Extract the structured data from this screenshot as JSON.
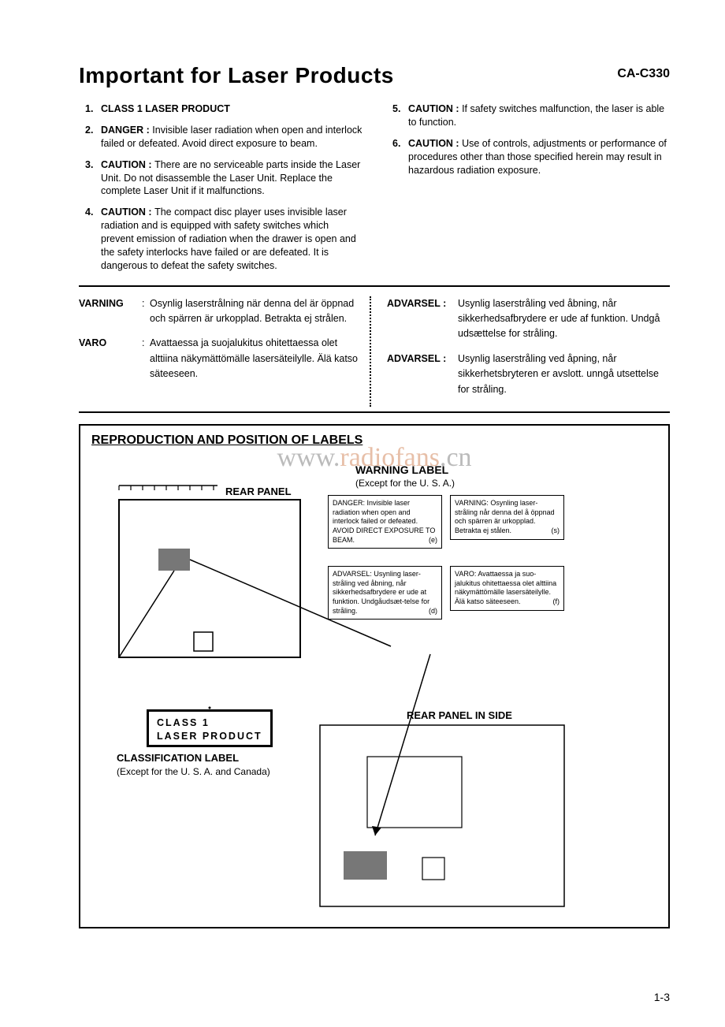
{
  "model": "CA-C330",
  "title": "Important for Laser Products",
  "list_left": [
    {
      "lead": "CLASS 1 LASER PRODUCT",
      "body": ""
    },
    {
      "lead": "DANGER :",
      "body": "Invisible laser radiation when open and interlock failed or defeated. Avoid direct exposure to beam."
    },
    {
      "lead": "CAUTION :",
      "body": "There are no serviceable parts inside the Laser Unit. Do not disassemble the Laser Unit. Replace the complete Laser Unit if it malfunctions."
    },
    {
      "lead": "CAUTION :",
      "body": "The compact disc player uses invisible laser radiation and is equipped with safety switches which prevent emission of radiation when the drawer is open and the safety interlocks have failed or are defeated. It is dangerous to defeat the safety switches."
    }
  ],
  "list_right": [
    {
      "lead": "CAUTION :",
      "body": "If safety switches malfunction, the laser is able to function."
    },
    {
      "lead": "CAUTION :",
      "body": "Use of controls, adjustments or performance of procedures other than those specified herein may result in hazardous radiation exposure."
    }
  ],
  "list_right_start": 5,
  "warnings_left": [
    {
      "label": "VARNING",
      "text": "Osynlig laserstrålning när denna del är öppnad och spärren är urkopplad. Betrakta ej strålen."
    },
    {
      "label": "VARO",
      "text": "Avattaessa ja suojalukitus ohitettaessa olet alttiina näkymättömälle lasersäteilylle. Älä katso säteeseen."
    }
  ],
  "warnings_right": [
    {
      "label": "ADVARSEL :",
      "text": "Usynlig laserstråling ved åbning, når sikkerhedsafbrydere er ude af funktion. Undgå udsættelse for stråling."
    },
    {
      "label": "ADVARSEL :",
      "text": "Usynlig laserstråling ved åpning, når sikkerhetsbryteren er avslott. unngå utsettelse for stråling."
    }
  ],
  "repro_title": "REPRODUCTION AND POSITION OF LABELS",
  "watermark_pre": "www.",
  "watermark_red": "radiofans",
  "watermark_post": ".cn",
  "rear_panel": "REAR PANEL",
  "warning_label": "WARNING LABEL",
  "warning_label_sub": "(Except for the U. S. A.)",
  "wbox": {
    "en": {
      "text": "DANGER:   Invisible laser radiation when open and interlock failed or defeated. AVOID DIRECT EXPOSURE TO BEAM.",
      "code": "(e)"
    },
    "sv": {
      "text": "VARNING:  Osynling laser-stråling når denna del å öppnad och spärren är urkopplad.  Betrakta ej stålen.",
      "code": "(s)"
    },
    "da": {
      "text": "ADVARSEL:  Usynling laser-stråling ved åbning, når sikkerhedsafbrydere er ude at funktion. Undgåudsæt-telse for stråling.",
      "code": "(d)"
    },
    "fi": {
      "text": "VARO:    Avattaessa ja suo-jalukitus ohitettaessa olet alttiina näkymättömälle lasersäteilylle. Älä katso säteeseen.",
      "code": "(f)"
    }
  },
  "class_box_line1": "CLASS   1",
  "class_box_line2": "LASER   PRODUCT",
  "class_label": "CLASSIFICATION LABEL",
  "class_label_sub": "(Except for the U. S. A. and Canada)",
  "rear_side": "REAR PANEL IN SIDE",
  "page_no": "1-3",
  "colors": {
    "text": "#000000",
    "bg": "#ffffff",
    "hatched": "#777777",
    "wm_gray": "#bbbbbb",
    "wm_red": "#e7bfa8"
  }
}
